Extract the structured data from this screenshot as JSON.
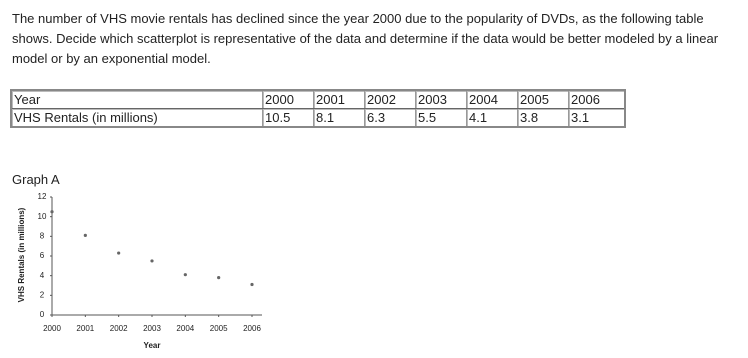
{
  "question": "The number of VHS movie rentals has declined since the year 2000 due to the popularity of DVDs, as the following table shows. Decide which scatterplot is representative of the data and determine if the data would be better modeled by a linear model or by an exponential model.",
  "table": {
    "rows": [
      [
        "Year",
        2000,
        2001,
        2002,
        2003,
        2004,
        2005,
        2006
      ],
      [
        "VHS Rentals (in millions)",
        10.5,
        8.1,
        6.3,
        5.5,
        4.1,
        3.8,
        3.1
      ]
    ]
  },
  "graph_label": "Graph A",
  "chart_data": {
    "type": "scatter",
    "x_label": "Year",
    "y_label": "VHS Rentals (in millions)",
    "x": [
      2000,
      2001,
      2002,
      2003,
      2004,
      2005,
      2006
    ],
    "values": [
      10.5,
      8.1,
      6.3,
      5.5,
      4.1,
      3.8,
      3.1
    ],
    "color": "#666666",
    "xlim": [
      2000,
      2006.3
    ],
    "xticks": [
      2000,
      2001,
      2002,
      2003,
      2004,
      2005,
      2006
    ],
    "ylim": [
      0,
      12
    ],
    "yticks": [
      0,
      2,
      4,
      6,
      8,
      10,
      12
    ]
  }
}
